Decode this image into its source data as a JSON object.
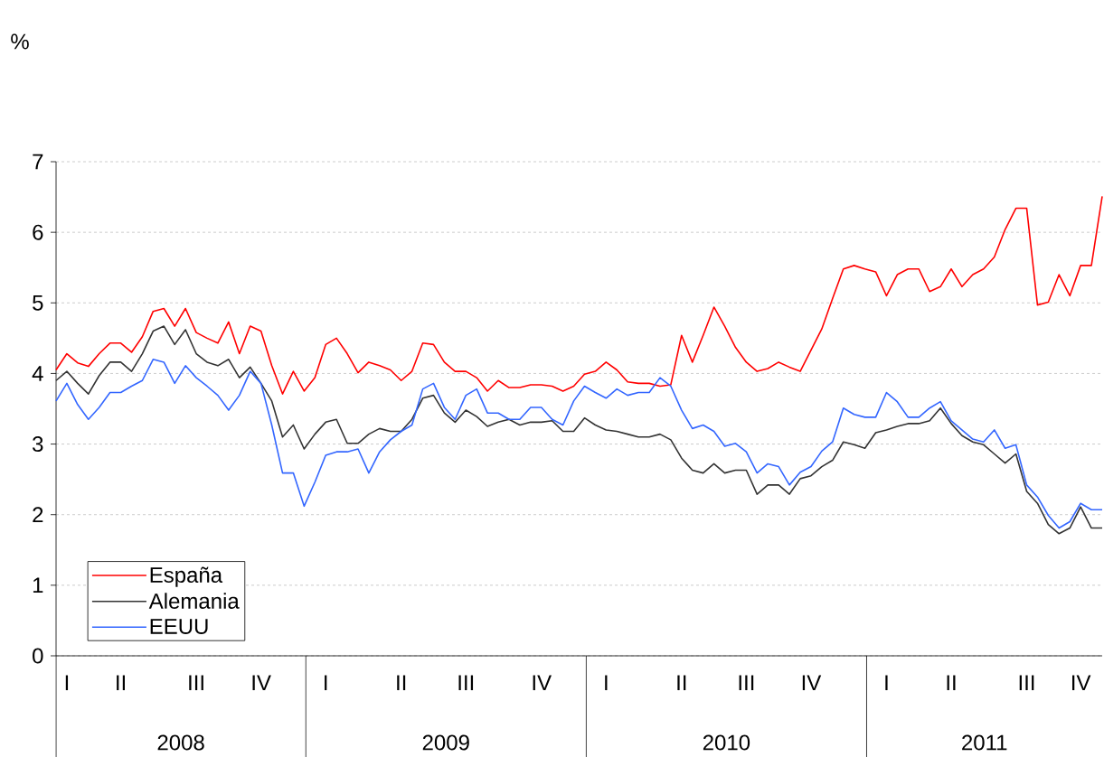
{
  "chart_data": {
    "type": "line",
    "categories": [
      null,
      "I",
      null,
      null,
      null,
      null,
      "II",
      null,
      null,
      null,
      null,
      null,
      null,
      "III",
      null,
      null,
      null,
      null,
      null,
      "IV",
      null,
      null,
      null,
      null,
      null,
      "I",
      null,
      null,
      null,
      null,
      null,
      null,
      "II",
      null,
      null,
      null,
      null,
      null,
      "III",
      null,
      null,
      null,
      null,
      null,
      null,
      "IV",
      null,
      null,
      null,
      null,
      null,
      "I",
      null,
      null,
      null,
      null,
      null,
      null,
      "II",
      null,
      null,
      null,
      null,
      null,
      "III",
      null,
      null,
      null,
      null,
      null,
      "IV",
      null,
      null,
      null,
      null,
      null,
      null,
      "I",
      null,
      null,
      null,
      null,
      null,
      "II",
      null,
      null,
      null,
      null,
      null,
      null,
      "III",
      null,
      null,
      null,
      null,
      "IV",
      null,
      null
    ],
    "series": [
      {
        "name": "España",
        "color": "#ff0000",
        "values": [
          4.05,
          4.28,
          4.15,
          4.1,
          4.28,
          4.43,
          4.43,
          4.3,
          4.52,
          4.88,
          4.92,
          4.67,
          4.92,
          4.58,
          4.5,
          4.43,
          4.73,
          4.28,
          4.67,
          4.6,
          4.11,
          3.71,
          4.03,
          3.75,
          3.94,
          4.41,
          4.5,
          4.28,
          4.01,
          4.16,
          4.11,
          4.05,
          3.9,
          4.03,
          4.43,
          4.41,
          4.16,
          4.03,
          4.03,
          3.94,
          3.75,
          3.9,
          3.8,
          3.8,
          3.84,
          3.84,
          3.82,
          3.75,
          3.82,
          3.99,
          4.03,
          4.16,
          4.05,
          3.88,
          3.86,
          3.86,
          3.82,
          3.84,
          4.54,
          4.16,
          4.54,
          4.94,
          4.67,
          4.37,
          4.16,
          4.03,
          4.07,
          4.16,
          4.09,
          4.03,
          4.33,
          4.63,
          5.06,
          5.48,
          5.53,
          5.48,
          5.44,
          5.1,
          5.4,
          5.48,
          5.48,
          5.16,
          5.23,
          5.48,
          5.23,
          5.4,
          5.48,
          5.65,
          6.04,
          6.34,
          6.34,
          4.97,
          5.01,
          5.4,
          5.1,
          5.53,
          5.53,
          6.51
        ]
      },
      {
        "name": "Alemania",
        "color": "#333333",
        "values": [
          3.9,
          4.03,
          3.86,
          3.71,
          3.97,
          4.16,
          4.16,
          4.03,
          4.28,
          4.6,
          4.67,
          4.41,
          4.62,
          4.28,
          4.16,
          4.11,
          4.2,
          3.94,
          4.09,
          3.86,
          3.61,
          3.1,
          3.27,
          2.93,
          3.14,
          3.31,
          3.35,
          3.01,
          3.01,
          3.14,
          3.22,
          3.18,
          3.18,
          3.35,
          3.65,
          3.69,
          3.44,
          3.31,
          3.48,
          3.39,
          3.25,
          3.31,
          3.35,
          3.27,
          3.31,
          3.31,
          3.33,
          3.18,
          3.18,
          3.37,
          3.27,
          3.2,
          3.18,
          3.14,
          3.1,
          3.1,
          3.14,
          3.06,
          2.8,
          2.63,
          2.59,
          2.72,
          2.59,
          2.63,
          2.63,
          2.29,
          2.42,
          2.42,
          2.29,
          2.51,
          2.55,
          2.68,
          2.77,
          3.03,
          2.99,
          2.94,
          3.16,
          3.2,
          3.25,
          3.29,
          3.29,
          3.33,
          3.51,
          3.29,
          3.12,
          3.03,
          2.99,
          2.86,
          2.73,
          2.86,
          2.33,
          2.16,
          1.86,
          1.73,
          1.81,
          2.11,
          1.81,
          1.81
        ]
      },
      {
        "name": "EEUU",
        "color": "#3366ff",
        "values": [
          3.61,
          3.86,
          3.56,
          3.35,
          3.52,
          3.73,
          3.73,
          3.82,
          3.9,
          4.2,
          4.16,
          3.86,
          4.11,
          3.94,
          3.82,
          3.69,
          3.48,
          3.69,
          4.03,
          3.86,
          3.27,
          2.59,
          2.59,
          2.12,
          2.46,
          2.84,
          2.89,
          2.89,
          2.93,
          2.59,
          2.89,
          3.06,
          3.18,
          3.27,
          3.78,
          3.86,
          3.52,
          3.35,
          3.69,
          3.78,
          3.44,
          3.44,
          3.35,
          3.35,
          3.52,
          3.52,
          3.35,
          3.27,
          3.61,
          3.82,
          3.73,
          3.65,
          3.78,
          3.69,
          3.73,
          3.73,
          3.94,
          3.82,
          3.48,
          3.22,
          3.27,
          3.18,
          2.97,
          3.01,
          2.89,
          2.59,
          2.72,
          2.68,
          2.42,
          2.6,
          2.68,
          2.9,
          3.03,
          3.51,
          3.42,
          3.38,
          3.38,
          3.73,
          3.6,
          3.38,
          3.38,
          3.51,
          3.6,
          3.33,
          3.2,
          3.07,
          3.03,
          3.2,
          2.94,
          2.99,
          2.42,
          2.25,
          1.99,
          1.81,
          1.9,
          2.16,
          2.07,
          2.07
        ]
      }
    ],
    "ylim": [
      0,
      7
    ],
    "yticks": [
      0,
      1,
      2,
      3,
      4,
      5,
      6,
      7
    ],
    "annotations": [
      "%",
      "2008",
      "2009",
      "2010",
      "2011"
    ],
    "grid": "y",
    "legend": "bottom left"
  }
}
